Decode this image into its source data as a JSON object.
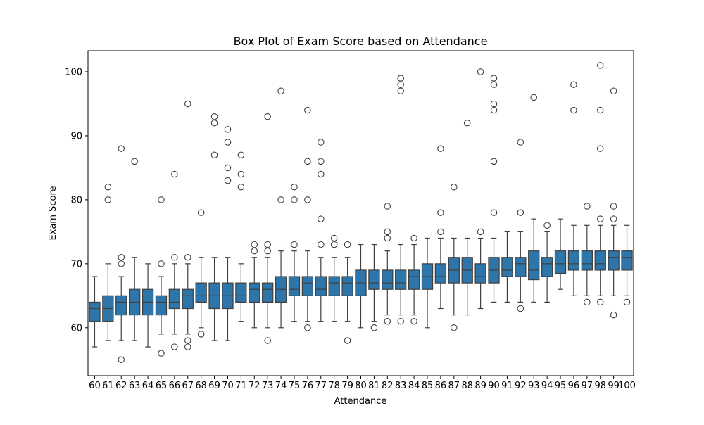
{
  "chart_data": {
    "type": "box",
    "title": "Box Plot of Exam Score based on Attendance",
    "xlabel": "Attendance",
    "ylabel": "Exam Score",
    "ylim": [
      52.5,
      103.3
    ],
    "yticks": [
      60,
      70,
      80,
      90,
      100
    ],
    "grid": false,
    "box_color": "#2e75a9",
    "categories": [
      "60",
      "61",
      "62",
      "63",
      "64",
      "65",
      "66",
      "67",
      "68",
      "69",
      "70",
      "71",
      "72",
      "73",
      "74",
      "75",
      "76",
      "77",
      "78",
      "79",
      "80",
      "81",
      "82",
      "83",
      "84",
      "85",
      "86",
      "87",
      "88",
      "89",
      "90",
      "91",
      "92",
      "93",
      "94",
      "95",
      "96",
      "97",
      "98",
      "99",
      "100"
    ],
    "boxes": [
      {
        "q1": 61,
        "median": 63,
        "q3": 64,
        "whislo": 57,
        "whishi": 68,
        "fliers": []
      },
      {
        "q1": 61,
        "median": 63,
        "q3": 65,
        "whislo": 58,
        "whishi": 70,
        "fliers": [
          80,
          82
        ]
      },
      {
        "q1": 62,
        "median": 64,
        "q3": 65,
        "whislo": 58,
        "whishi": 68,
        "fliers": [
          55,
          70,
          71,
          88
        ]
      },
      {
        "q1": 62,
        "median": 64,
        "q3": 66,
        "whislo": 58,
        "whishi": 71,
        "fliers": [
          86
        ]
      },
      {
        "q1": 62,
        "median": 64,
        "q3": 66,
        "whislo": 57,
        "whishi": 70,
        "fliers": []
      },
      {
        "q1": 62,
        "median": 64,
        "q3": 65,
        "whislo": 59,
        "whishi": 68,
        "fliers": [
          56,
          70,
          80
        ]
      },
      {
        "q1": 63,
        "median": 64,
        "q3": 66,
        "whislo": 59,
        "whishi": 70,
        "fliers": [
          57,
          71,
          84
        ]
      },
      {
        "q1": 63,
        "median": 65,
        "q3": 66,
        "whislo": 59,
        "whishi": 70,
        "fliers": [
          57,
          58,
          71,
          95
        ]
      },
      {
        "q1": 64,
        "median": 65,
        "q3": 67,
        "whislo": 60,
        "whishi": 71,
        "fliers": [
          59,
          78
        ]
      },
      {
        "q1": 63,
        "median": 65,
        "q3": 67,
        "whislo": 58,
        "whishi": 71,
        "fliers": [
          87,
          92,
          93
        ]
      },
      {
        "q1": 63,
        "median": 65,
        "q3": 67,
        "whislo": 58,
        "whishi": 71,
        "fliers": [
          83,
          85,
          89,
          91
        ]
      },
      {
        "q1": 64,
        "median": 65,
        "q3": 67,
        "whislo": 61,
        "whishi": 70,
        "fliers": [
          82,
          84,
          87
        ]
      },
      {
        "q1": 64,
        "median": 66,
        "q3": 67,
        "whislo": 60,
        "whishi": 71,
        "fliers": [
          72,
          73
        ]
      },
      {
        "q1": 64,
        "median": 66,
        "q3": 67,
        "whislo": 60,
        "whishi": 71,
        "fliers": [
          58,
          72,
          73,
          93
        ]
      },
      {
        "q1": 64,
        "median": 66,
        "q3": 68,
        "whislo": 60,
        "whishi": 72,
        "fliers": [
          80,
          97
        ]
      },
      {
        "q1": 65,
        "median": 66,
        "q3": 68,
        "whislo": 61,
        "whishi": 72,
        "fliers": [
          73,
          80,
          82
        ]
      },
      {
        "q1": 65,
        "median": 67,
        "q3": 68,
        "whislo": 61,
        "whishi": 72,
        "fliers": [
          60,
          80,
          86,
          94
        ]
      },
      {
        "q1": 65,
        "median": 66,
        "q3": 68,
        "whislo": 61,
        "whishi": 71,
        "fliers": [
          73,
          77,
          84,
          86,
          89
        ]
      },
      {
        "q1": 65,
        "median": 67,
        "q3": 68,
        "whislo": 61,
        "whishi": 71,
        "fliers": [
          73,
          74
        ]
      },
      {
        "q1": 65,
        "median": 67,
        "q3": 68,
        "whislo": 61,
        "whishi": 71,
        "fliers": [
          58,
          73
        ]
      },
      {
        "q1": 65,
        "median": 67,
        "q3": 69,
        "whislo": 60,
        "whishi": 73,
        "fliers": []
      },
      {
        "q1": 66,
        "median": 67,
        "q3": 69,
        "whislo": 61,
        "whishi": 73,
        "fliers": [
          60
        ]
      },
      {
        "q1": 66,
        "median": 67,
        "q3": 69,
        "whislo": 62,
        "whishi": 72,
        "fliers": [
          61,
          74,
          75,
          79
        ]
      },
      {
        "q1": 66,
        "median": 67,
        "q3": 69,
        "whislo": 62,
        "whishi": 73,
        "fliers": [
          61,
          97,
          98,
          99
        ]
      },
      {
        "q1": 66,
        "median": 68,
        "q3": 69,
        "whislo": 62,
        "whishi": 73,
        "fliers": [
          61,
          74
        ]
      },
      {
        "q1": 66,
        "median": 68,
        "q3": 70,
        "whislo": 60,
        "whishi": 74,
        "fliers": []
      },
      {
        "q1": 67,
        "median": 68,
        "q3": 70,
        "whislo": 63,
        "whishi": 74,
        "fliers": [
          75,
          78,
          88
        ]
      },
      {
        "q1": 67,
        "median": 69,
        "q3": 71,
        "whislo": 62,
        "whishi": 74,
        "fliers": [
          60,
          82
        ]
      },
      {
        "q1": 67,
        "median": 69,
        "q3": 71,
        "whislo": 62,
        "whishi": 74,
        "fliers": [
          92
        ]
      },
      {
        "q1": 67,
        "median": 68,
        "q3": 70,
        "whislo": 63,
        "whishi": 74,
        "fliers": [
          75,
          100
        ]
      },
      {
        "q1": 67,
        "median": 69,
        "q3": 71,
        "whislo": 64,
        "whishi": 74,
        "fliers": [
          78,
          86,
          94,
          95,
          98,
          99
        ]
      },
      {
        "q1": 68,
        "median": 69,
        "q3": 71,
        "whislo": 64,
        "whishi": 75,
        "fliers": []
      },
      {
        "q1": 68,
        "median": 70,
        "q3": 71,
        "whislo": 64,
        "whishi": 75,
        "fliers": [
          63,
          78,
          89
        ]
      },
      {
        "q1": 67.5,
        "median": 69,
        "q3": 72,
        "whislo": 64,
        "whishi": 77,
        "fliers": [
          96
        ]
      },
      {
        "q1": 68,
        "median": 70,
        "q3": 71,
        "whislo": 64,
        "whishi": 75,
        "fliers": [
          76
        ]
      },
      {
        "q1": 68.5,
        "median": 70,
        "q3": 72,
        "whislo": 66,
        "whishi": 77,
        "fliers": []
      },
      {
        "q1": 69,
        "median": 70,
        "q3": 72,
        "whislo": 65,
        "whishi": 76,
        "fliers": [
          94,
          98
        ]
      },
      {
        "q1": 69,
        "median": 70,
        "q3": 72,
        "whislo": 65,
        "whishi": 76,
        "fliers": [
          64,
          79
        ]
      },
      {
        "q1": 69,
        "median": 70,
        "q3": 72,
        "whislo": 65,
        "whishi": 76,
        "fliers": [
          64,
          77,
          88,
          94,
          101
        ]
      },
      {
        "q1": 69,
        "median": 71,
        "q3": 72,
        "whislo": 65,
        "whishi": 76,
        "fliers": [
          62,
          77,
          79,
          97
        ]
      },
      {
        "q1": 69,
        "median": 71,
        "q3": 72,
        "whislo": 65,
        "whishi": 76,
        "fliers": [
          64
        ]
      }
    ]
  }
}
